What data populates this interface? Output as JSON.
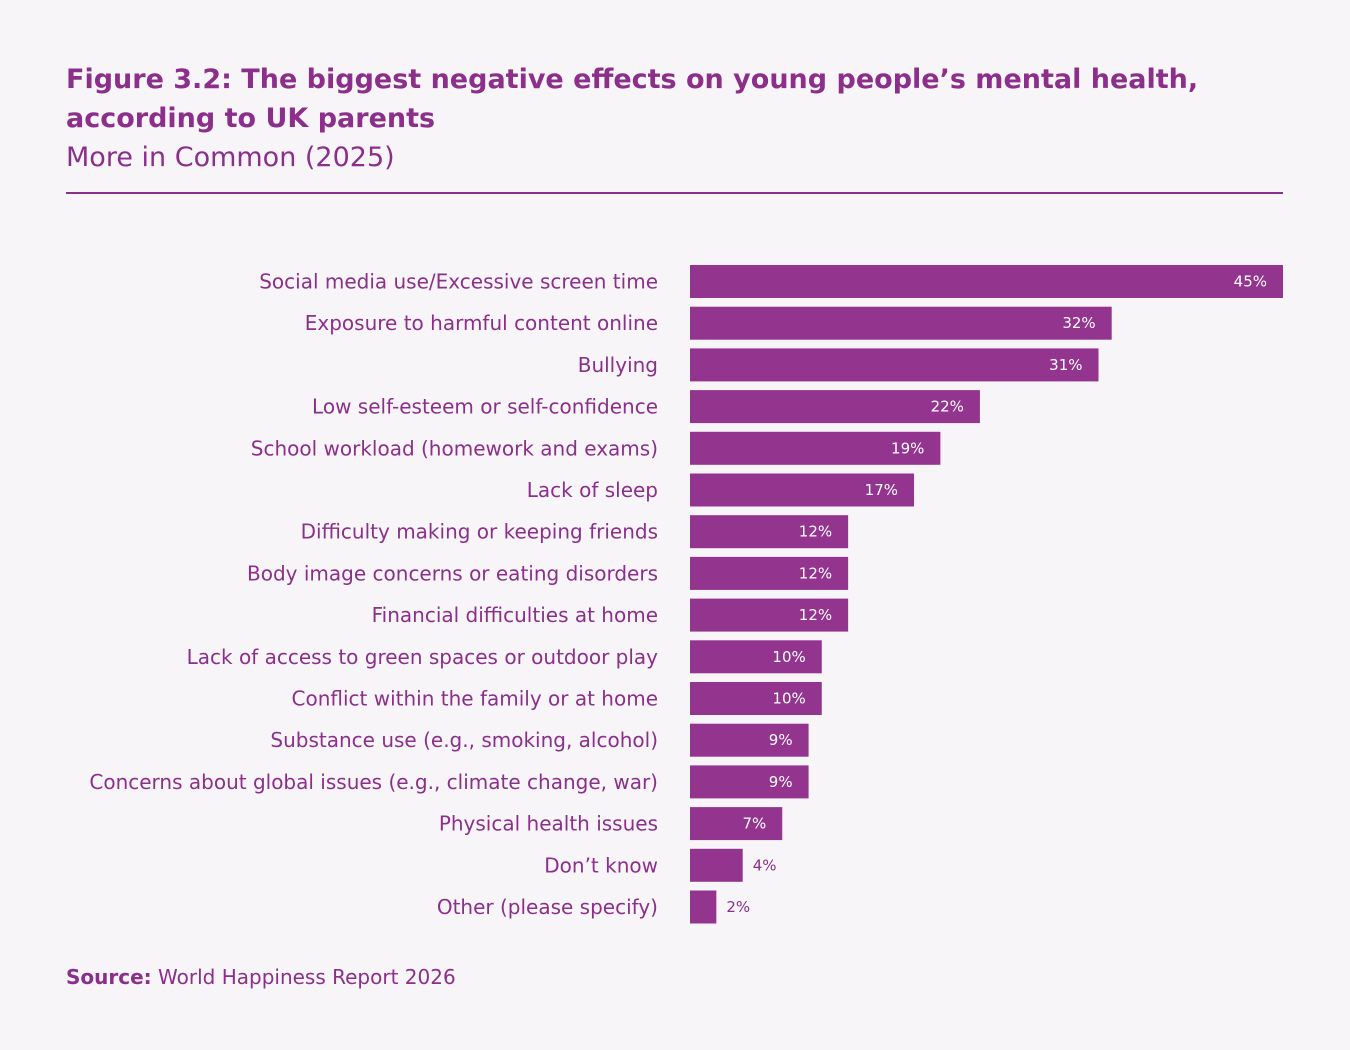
{
  "header": {
    "title": "Figure 3.2: The biggest negative effects on young people’s mental health, according to UK parents",
    "subtitle": "More in Common (2025)"
  },
  "footer": {
    "source_prefix": "Source:",
    "source_text": " World Happiness Report 2026"
  },
  "colors": {
    "accent": "#8b2f8b",
    "bar": "#93358e",
    "background": "#f8f5f9"
  },
  "chart_data": {
    "type": "bar",
    "orientation": "horizontal",
    "title": "Figure 3.2: The biggest negative effects on young people’s mental health, according to UK parents",
    "subtitle": "More in Common (2025)",
    "xlabel": "",
    "ylabel": "",
    "xlim": [
      0,
      45
    ],
    "grid": false,
    "legend": "none",
    "value_format": "percent",
    "categories": [
      "Social media use/Excessive screen time",
      "Exposure to harmful content online",
      "Bullying",
      "Low self-esteem or self-confidence",
      "School workload (homework and exams)",
      "Lack of sleep",
      "Difficulty making or keeping friends",
      "Body image concerns or eating disorders",
      "Financial difficulties at home",
      "Lack of access to green spaces or outdoor play",
      "Conflict within the family or at home",
      "Substance use (e.g., smoking, alcohol)",
      "Concerns about global issues (e.g., climate change, war)",
      "Physical health issues",
      "Don’t know",
      "Other (please specify)"
    ],
    "values": [
      45,
      32,
      31,
      22,
      19,
      17,
      12,
      12,
      12,
      10,
      10,
      9,
      9,
      7,
      4,
      2
    ],
    "value_labels": [
      "45%",
      "32%",
      "31%",
      "22%",
      "19%",
      "17%",
      "12%",
      "12%",
      "12%",
      "10%",
      "10%",
      "9%",
      "9%",
      "7%",
      "4%",
      "2%"
    ]
  }
}
